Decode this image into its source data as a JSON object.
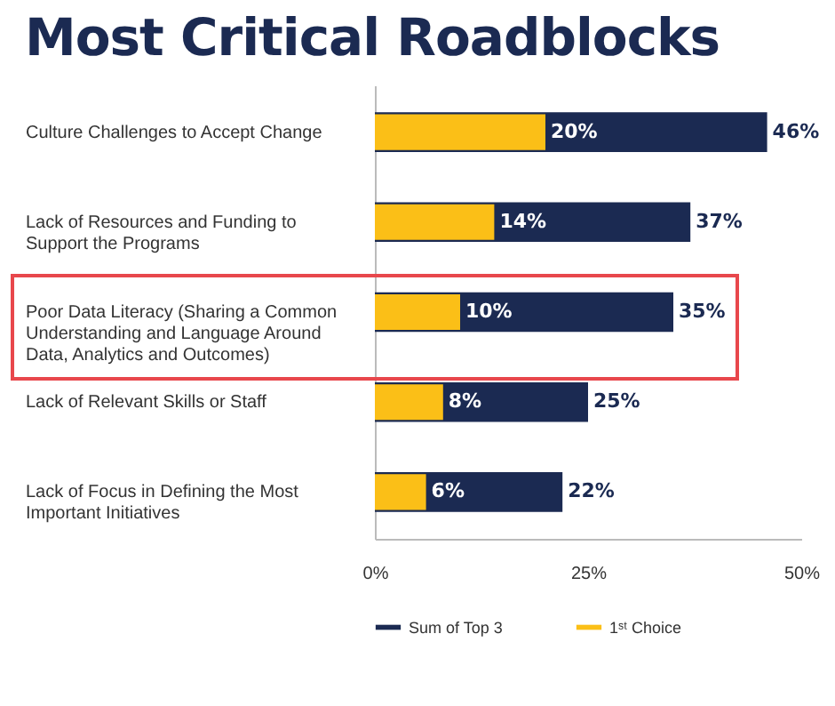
{
  "chart_data": {
    "type": "bar",
    "orientation": "horizontal",
    "title": "Most Critical Roadblocks",
    "categories": [
      "Culture Challenges to Accept Change",
      "Lack of Resources and Funding to Support the Programs",
      "Poor Data Literacy (Sharing a Common Understanding and Language Around Data, Analytics and Outcomes)",
      "Lack of Relevant Skills or Staff",
      "Lack of Focus in Defining the Most Important Initiatives"
    ],
    "series": [
      {
        "name": "Sum of Top 3",
        "color": "#1b2a52",
        "values": [
          46,
          37,
          35,
          25,
          22
        ],
        "value_labels": [
          "46%",
          "37%",
          "35%",
          "25%",
          "22%"
        ]
      },
      {
        "name": "1ˢᵗ Choice",
        "color": "#fbbf17",
        "values": [
          20,
          14,
          10,
          8,
          6
        ],
        "value_labels": [
          "20%",
          "14%",
          "10%",
          "8%",
          "6%"
        ]
      }
    ],
    "xlim": [
      0,
      50
    ],
    "xticks": [
      {
        "value": 0,
        "label": "0%"
      },
      {
        "value": 25,
        "label": "25%"
      },
      {
        "value": 50,
        "label": "50%"
      }
    ],
    "legend": "bottom"
  }
}
